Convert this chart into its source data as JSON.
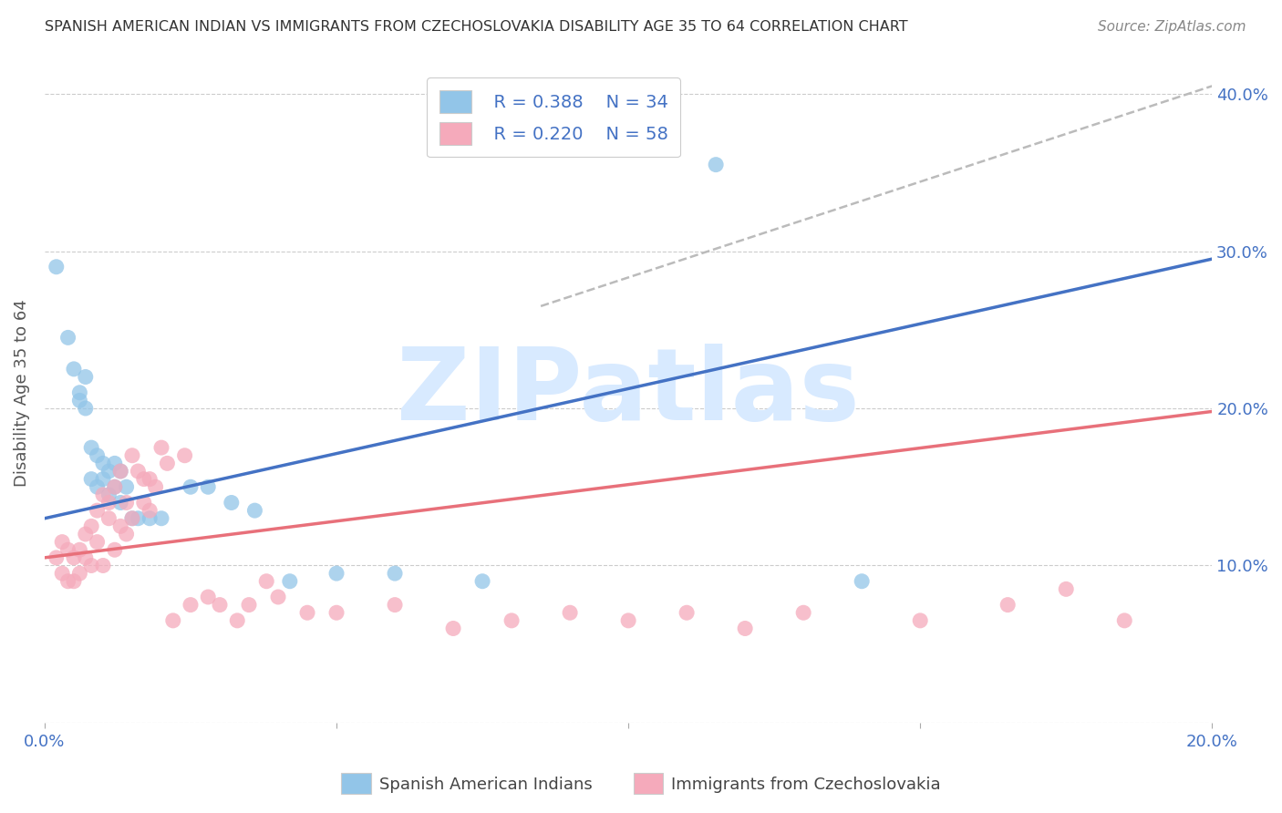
{
  "title": "SPANISH AMERICAN INDIAN VS IMMIGRANTS FROM CZECHOSLOVAKIA DISABILITY AGE 35 TO 64 CORRELATION CHART",
  "source": "Source: ZipAtlas.com",
  "ylabel": "Disability Age 35 to 64",
  "xlim": [
    0.0,
    0.2
  ],
  "ylim": [
    0.0,
    0.42
  ],
  "x_ticks": [
    0.0,
    0.05,
    0.1,
    0.15,
    0.2
  ],
  "x_tick_labels": [
    "0.0%",
    "",
    "",
    "",
    "20.0%"
  ],
  "y_ticks": [
    0.0,
    0.1,
    0.2,
    0.3,
    0.4
  ],
  "y_tick_labels": [
    "",
    "10.0%",
    "20.0%",
    "30.0%",
    "40.0%"
  ],
  "watermark": "ZIPatlas",
  "legend_R1": "R = 0.388",
  "legend_N1": "N = 34",
  "legend_R2": "R = 0.220",
  "legend_N2": "N = 58",
  "blue_color": "#92C5E8",
  "pink_color": "#F5AABB",
  "blue_line_color": "#4472C4",
  "pink_line_color": "#E8707A",
  "dashed_line_color": "#BBBBBB",
  "blue_scatter_x": [
    0.002,
    0.004,
    0.005,
    0.006,
    0.006,
    0.007,
    0.007,
    0.008,
    0.008,
    0.009,
    0.009,
    0.01,
    0.01,
    0.011,
    0.011,
    0.012,
    0.012,
    0.013,
    0.013,
    0.014,
    0.015,
    0.016,
    0.018,
    0.02,
    0.025,
    0.028,
    0.032,
    0.036,
    0.042,
    0.05,
    0.06,
    0.075,
    0.115,
    0.14
  ],
  "blue_scatter_y": [
    0.29,
    0.245,
    0.225,
    0.21,
    0.205,
    0.22,
    0.2,
    0.175,
    0.155,
    0.17,
    0.15,
    0.165,
    0.155,
    0.16,
    0.145,
    0.165,
    0.15,
    0.16,
    0.14,
    0.15,
    0.13,
    0.13,
    0.13,
    0.13,
    0.15,
    0.15,
    0.14,
    0.135,
    0.09,
    0.095,
    0.095,
    0.09,
    0.355,
    0.09
  ],
  "pink_scatter_x": [
    0.002,
    0.003,
    0.003,
    0.004,
    0.004,
    0.005,
    0.005,
    0.006,
    0.006,
    0.007,
    0.007,
    0.008,
    0.008,
    0.009,
    0.009,
    0.01,
    0.01,
    0.011,
    0.011,
    0.012,
    0.012,
    0.013,
    0.013,
    0.014,
    0.014,
    0.015,
    0.015,
    0.016,
    0.017,
    0.017,
    0.018,
    0.018,
    0.019,
    0.02,
    0.021,
    0.022,
    0.024,
    0.025,
    0.028,
    0.03,
    0.033,
    0.035,
    0.038,
    0.04,
    0.045,
    0.05,
    0.06,
    0.07,
    0.08,
    0.09,
    0.1,
    0.11,
    0.12,
    0.13,
    0.15,
    0.165,
    0.175,
    0.185
  ],
  "pink_scatter_y": [
    0.105,
    0.115,
    0.095,
    0.11,
    0.09,
    0.105,
    0.09,
    0.11,
    0.095,
    0.12,
    0.105,
    0.125,
    0.1,
    0.135,
    0.115,
    0.145,
    0.1,
    0.14,
    0.13,
    0.15,
    0.11,
    0.16,
    0.125,
    0.14,
    0.12,
    0.17,
    0.13,
    0.16,
    0.155,
    0.14,
    0.155,
    0.135,
    0.15,
    0.175,
    0.165,
    0.065,
    0.17,
    0.075,
    0.08,
    0.075,
    0.065,
    0.075,
    0.09,
    0.08,
    0.07,
    0.07,
    0.075,
    0.06,
    0.065,
    0.07,
    0.065,
    0.07,
    0.06,
    0.07,
    0.065,
    0.075,
    0.085,
    0.065
  ],
  "blue_line_x0": 0.0,
  "blue_line_x1": 0.2,
  "blue_line_y0": 0.13,
  "blue_line_y1": 0.295,
  "pink_line_x0": 0.0,
  "pink_line_x1": 0.2,
  "pink_line_y0": 0.105,
  "pink_line_y1": 0.198,
  "dashed_line_x0": 0.085,
  "dashed_line_x1": 0.2,
  "dashed_line_y0": 0.265,
  "dashed_line_y1": 0.405,
  "legend_label_blue": "Spanish American Indians",
  "legend_label_pink": "Immigrants from Czechoslovakia"
}
